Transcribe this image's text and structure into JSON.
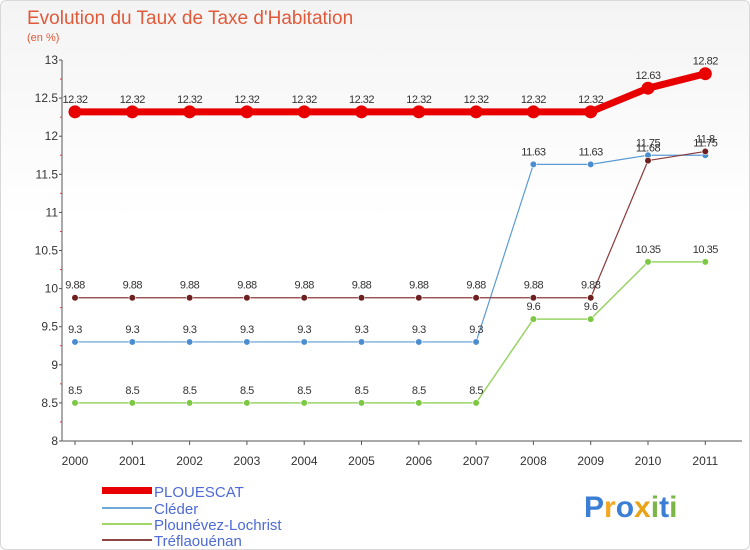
{
  "chart_data": {
    "type": "line",
    "title": "Evolution du Taux de Taxe d'Habitation",
    "ylabel": "(en %)",
    "x": [
      "2000",
      "2001",
      "2002",
      "2003",
      "2004",
      "2005",
      "2006",
      "2007",
      "2008",
      "2009",
      "2010",
      "2011"
    ],
    "ylim": [
      8,
      13
    ],
    "yticks": [
      "8",
      "8.5",
      "9",
      "9.5",
      "10",
      "10.5",
      "11",
      "11.5",
      "12",
      "12.5",
      "13"
    ],
    "grid": false,
    "legend_position": "bottom-left",
    "series": [
      {
        "name": "PLOUESCAT",
        "color": "#e80000",
        "values": [
          12.32,
          12.32,
          12.32,
          12.32,
          12.32,
          12.32,
          12.32,
          12.32,
          12.32,
          12.32,
          12.63,
          12.82
        ],
        "labels": [
          "12.32",
          "12.32",
          "12.32",
          "12.32",
          "12.32",
          "12.32",
          "12.32",
          "12.32",
          "12.32",
          "12.32",
          "12.63",
          "12.82"
        ]
      },
      {
        "name": "Cléder",
        "color": "#5b9bd5",
        "values": [
          9.3,
          9.3,
          9.3,
          9.3,
          9.3,
          9.3,
          9.3,
          9.3,
          11.63,
          11.63,
          11.75,
          11.75
        ],
        "labels": [
          "9.3",
          "9.3",
          "9.3",
          "9.3",
          "9.3",
          "9.3",
          "9.3",
          "9.3",
          "11.63",
          "11.63",
          "11.75",
          "11.75"
        ]
      },
      {
        "name": "Plounévez-Lochrist",
        "color": "#92d050",
        "values": [
          8.5,
          8.5,
          8.5,
          8.5,
          8.5,
          8.5,
          8.5,
          8.5,
          9.6,
          9.6,
          10.35,
          10.35
        ],
        "labels": [
          "8.5",
          "8.5",
          "8.5",
          "8.5",
          "8.5",
          "8.5",
          "8.5",
          "8.5",
          "9.6",
          "9.6",
          "10.35",
          "10.35"
        ]
      },
      {
        "name": "Tréflaouénan",
        "color": "#7b2c2c",
        "values": [
          9.88,
          9.88,
          9.88,
          9.88,
          9.88,
          9.88,
          9.88,
          9.88,
          9.88,
          9.88,
          11.68,
          11.8
        ],
        "labels": [
          "9.88",
          "9.88",
          "9.88",
          "9.88",
          "9.88",
          "9.88",
          "9.88",
          "9.88",
          "9.88",
          "9.88",
          "11.68",
          "11.8"
        ]
      }
    ]
  },
  "logo": {
    "text": "Proxiti"
  }
}
